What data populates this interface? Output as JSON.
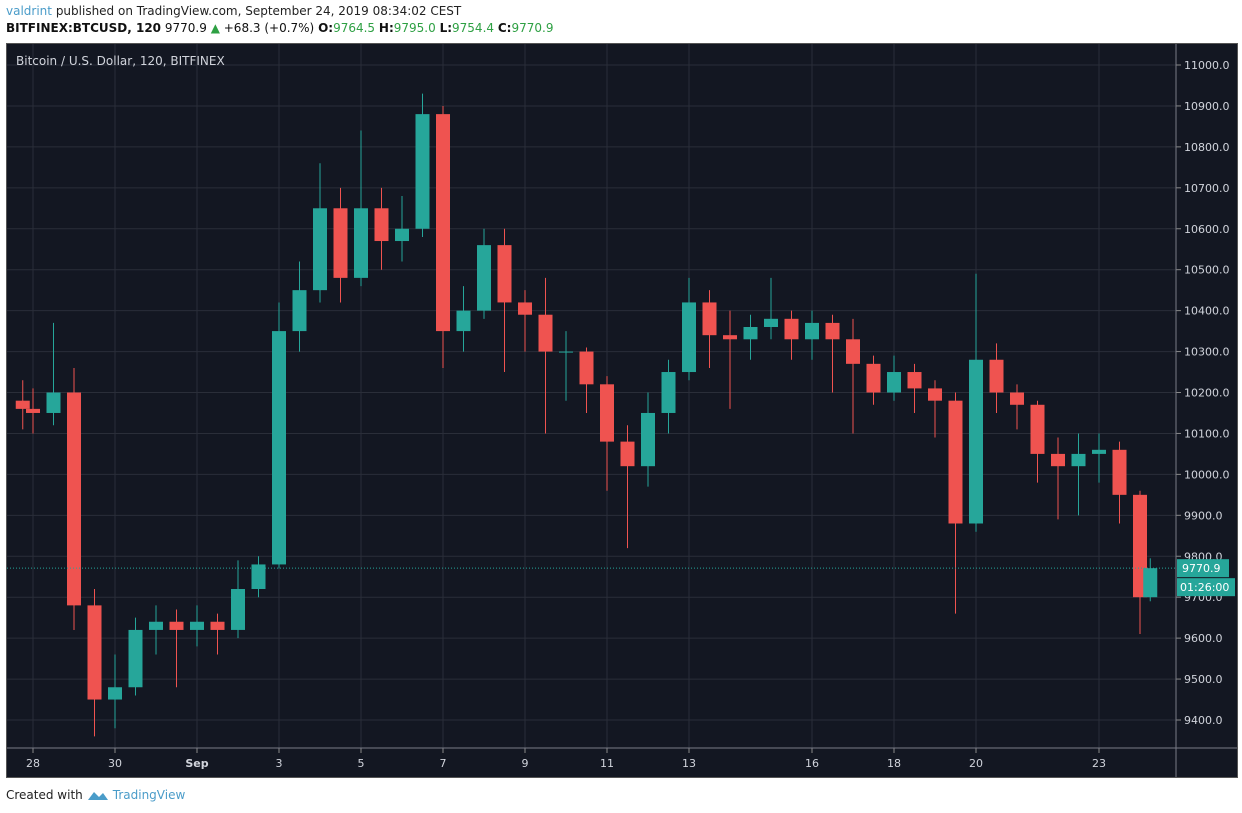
{
  "header": {
    "author": "valdrint",
    "published": "published on TradingView.com, September 24, 2019 08:34:02 CEST",
    "symbol": "BITFINEX:BTCUSD, 120",
    "last": "9770.9",
    "change": "+68.3 (+0.7%)",
    "o_label": "O:",
    "o": "9764.5",
    "h_label": "H:",
    "h": "9795.0",
    "l_label": "L:",
    "l": "9754.4",
    "c_label": "C:",
    "c": "9770.9"
  },
  "footer": {
    "created_with": "Created with",
    "brand": "TradingView"
  },
  "colors": {
    "up": "#26a69a",
    "down": "#ef5350",
    "background": "#131722",
    "grid": "#2a2e39",
    "accent": "#4a9cc9"
  },
  "chart_data": {
    "type": "candlestick",
    "title": "Bitcoin / U.S. Dollar, 120, BITFINEX",
    "ylim": [
      9350,
      11050
    ],
    "y_ticks": [
      "11000.0",
      "10900.0",
      "10800.0",
      "10700.0",
      "10600.0",
      "10500.0",
      "10400.0",
      "10300.0",
      "10200.0",
      "10100.0",
      "10000.0",
      "9900.0",
      "9800.0",
      "9700.0",
      "9600.0",
      "9500.0",
      "9400.0"
    ],
    "x_ticks": [
      {
        "label": "28",
        "t": "2019-08-28T00:00"
      },
      {
        "label": "30",
        "t": "2019-08-30T00:00"
      },
      {
        "label": "Sep",
        "t": "2019-09-01T00:00"
      },
      {
        "label": "3",
        "t": "2019-09-03T00:00"
      },
      {
        "label": "5",
        "t": "2019-09-05T00:00"
      },
      {
        "label": "7",
        "t": "2019-09-07T00:00"
      },
      {
        "label": "9",
        "t": "2019-09-09T00:00"
      },
      {
        "label": "11",
        "t": "2019-09-11T00:00"
      },
      {
        "label": "13",
        "t": "2019-09-13T00:00"
      },
      {
        "label": "16",
        "t": "2019-09-16T00:00"
      },
      {
        "label": "18",
        "t": "2019-09-18T00:00"
      },
      {
        "label": "20",
        "t": "2019-09-20T00:00"
      },
      {
        "label": "23",
        "t": "2019-09-23T00:00"
      }
    ],
    "last_price_label": "9770.9",
    "countdown_label": "01:26:00",
    "last_price": 9770.9,
    "candles": [
      [
        "2019-08-27T18:00",
        10180,
        10230,
        10110,
        10160
      ],
      [
        "2019-08-28T00:00",
        10160,
        10210,
        10100,
        10150
      ],
      [
        "2019-08-28T12:00",
        10150,
        10370,
        10120,
        10200
      ],
      [
        "2019-08-29T00:00",
        10200,
        10260,
        9620,
        9680
      ],
      [
        "2019-08-29T12:00",
        9680,
        9720,
        9360,
        9450
      ],
      [
        "2019-08-30T00:00",
        9450,
        9560,
        9380,
        9480
      ],
      [
        "2019-08-30T12:00",
        9480,
        9650,
        9460,
        9620
      ],
      [
        "2019-08-31T00:00",
        9620,
        9680,
        9560,
        9640
      ],
      [
        "2019-08-31T12:00",
        9640,
        9670,
        9480,
        9620
      ],
      [
        "2019-09-01T00:00",
        9620,
        9680,
        9580,
        9640
      ],
      [
        "2019-09-01T12:00",
        9640,
        9660,
        9560,
        9620
      ],
      [
        "2019-09-02T00:00",
        9620,
        9790,
        9600,
        9720
      ],
      [
        "2019-09-02T12:00",
        9720,
        9800,
        9700,
        9780
      ],
      [
        "2019-09-03T00:00",
        9780,
        10420,
        9770,
        10350
      ],
      [
        "2019-09-03T12:00",
        10350,
        10520,
        10300,
        10450
      ],
      [
        "2019-09-04T00:00",
        10450,
        10760,
        10420,
        10650
      ],
      [
        "2019-09-04T12:00",
        10650,
        10700,
        10420,
        10480
      ],
      [
        "2019-09-05T00:00",
        10480,
        10840,
        10460,
        10650
      ],
      [
        "2019-09-05T12:00",
        10650,
        10700,
        10500,
        10570
      ],
      [
        "2019-09-06T00:00",
        10570,
        10680,
        10520,
        10600
      ],
      [
        "2019-09-06T12:00",
        10600,
        10930,
        10580,
        10880
      ],
      [
        "2019-09-07T00:00",
        10880,
        10900,
        10260,
        10350
      ],
      [
        "2019-09-07T12:00",
        10350,
        10460,
        10300,
        10400
      ],
      [
        "2019-09-08T00:00",
        10400,
        10600,
        10380,
        10560
      ],
      [
        "2019-09-08T12:00",
        10560,
        10600,
        10250,
        10420
      ],
      [
        "2019-09-09T00:00",
        10420,
        10450,
        10300,
        10390
      ],
      [
        "2019-09-09T12:00",
        10390,
        10480,
        10100,
        10300
      ],
      [
        "2019-09-10T00:00",
        10300,
        10350,
        10180,
        10300
      ],
      [
        "2019-09-10T12:00",
        10300,
        10310,
        10150,
        10220
      ],
      [
        "2019-09-11T00:00",
        10220,
        10240,
        9960,
        10080
      ],
      [
        "2019-09-11T12:00",
        10080,
        10120,
        9820,
        10020
      ],
      [
        "2019-09-12T00:00",
        10020,
        10200,
        9970,
        10150
      ],
      [
        "2019-09-12T12:00",
        10150,
        10280,
        10100,
        10250
      ],
      [
        "2019-09-13T00:00",
        10250,
        10480,
        10230,
        10420
      ],
      [
        "2019-09-13T12:00",
        10420,
        10450,
        10260,
        10340
      ],
      [
        "2019-09-14T00:00",
        10340,
        10400,
        10160,
        10330
      ],
      [
        "2019-09-14T12:00",
        10330,
        10390,
        10280,
        10360
      ],
      [
        "2019-09-15T00:00",
        10360,
        10480,
        10330,
        10380
      ],
      [
        "2019-09-15T12:00",
        10380,
        10400,
        10280,
        10330
      ],
      [
        "2019-09-16T00:00",
        10330,
        10400,
        10280,
        10370
      ],
      [
        "2019-09-16T12:00",
        10370,
        10390,
        10200,
        10330
      ],
      [
        "2019-09-17T00:00",
        10330,
        10380,
        10100,
        10270
      ],
      [
        "2019-09-17T12:00",
        10270,
        10290,
        10170,
        10200
      ],
      [
        "2019-09-18T00:00",
        10200,
        10290,
        10180,
        10250
      ],
      [
        "2019-09-18T12:00",
        10250,
        10270,
        10150,
        10210
      ],
      [
        "2019-09-19T00:00",
        10210,
        10230,
        10090,
        10180
      ],
      [
        "2019-09-19T12:00",
        10180,
        10200,
        9660,
        9880
      ],
      [
        "2019-09-20T00:00",
        9880,
        10490,
        9860,
        10280
      ],
      [
        "2019-09-20T12:00",
        10280,
        10320,
        10150,
        10200
      ],
      [
        "2019-09-21T00:00",
        10200,
        10220,
        10110,
        10170
      ],
      [
        "2019-09-21T12:00",
        10170,
        10180,
        9980,
        10050
      ],
      [
        "2019-09-22T00:00",
        10050,
        10090,
        9890,
        10020
      ],
      [
        "2019-09-22T12:00",
        10020,
        10100,
        9900,
        10050
      ],
      [
        "2019-09-23T00:00",
        10050,
        10100,
        9980,
        10060
      ],
      [
        "2019-09-23T12:00",
        10060,
        10080,
        9880,
        9950
      ],
      [
        "2019-09-24T00:00",
        9950,
        9960,
        9610,
        9700
      ],
      [
        "2019-09-24T06:00",
        9700,
        9795,
        9690,
        9770.9
      ]
    ]
  }
}
